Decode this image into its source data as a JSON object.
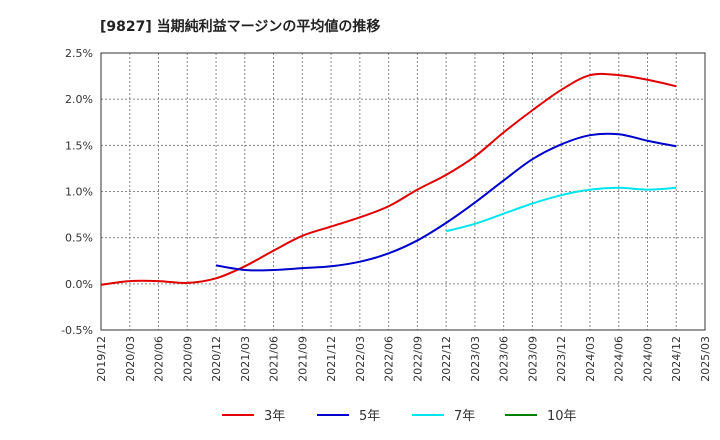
{
  "chart_data": {
    "type": "line",
    "title": "[9827]  当期純利益マージンの平均値の推移",
    "xlabel": "",
    "ylabel": "",
    "ylim": [
      -0.5,
      2.5
    ],
    "y_unit": "%",
    "grid": true,
    "legend_position": "bottom",
    "x_tick_labels": [
      "2019/12",
      "2020/03",
      "2020/06",
      "2020/09",
      "2020/12",
      "2021/03",
      "2021/06",
      "2021/09",
      "2021/12",
      "2022/03",
      "2022/06",
      "2022/09",
      "2022/12",
      "2023/03",
      "2023/06",
      "2023/09",
      "2023/12",
      "2024/03",
      "2024/06",
      "2024/09",
      "2024/12",
      "2025/03"
    ],
    "y_tick_labels": [
      "2.5%",
      "2.0%",
      "1.5%",
      "1.0%",
      "0.5%",
      "0.0%",
      "-0.5%"
    ],
    "y_ticks": [
      2.5,
      2.0,
      1.5,
      1.0,
      0.5,
      0.0,
      -0.5
    ],
    "series": [
      {
        "name": "3年",
        "color": "#e00000",
        "x": [
          "2019/12",
          "2020/03",
          "2020/06",
          "2020/09",
          "2020/12",
          "2021/03",
          "2021/06",
          "2021/09",
          "2021/12",
          "2022/03",
          "2022/06",
          "2022/09",
          "2022/12",
          "2023/03",
          "2023/06",
          "2023/09",
          "2023/12",
          "2024/03",
          "2024/06",
          "2024/09",
          "2024/12"
        ],
        "values": [
          -0.01,
          0.03,
          0.03,
          0.01,
          0.06,
          0.19,
          0.36,
          0.52,
          0.62,
          0.72,
          0.84,
          1.02,
          1.18,
          1.38,
          1.64,
          1.88,
          2.1,
          2.26,
          2.26,
          2.21,
          2.14
        ]
      },
      {
        "name": "5年",
        "color": "#0000cc",
        "x": [
          "2020/12",
          "2021/03",
          "2021/06",
          "2021/09",
          "2021/12",
          "2022/03",
          "2022/06",
          "2022/09",
          "2022/12",
          "2023/03",
          "2023/06",
          "2023/09",
          "2023/12",
          "2024/03",
          "2024/06",
          "2024/09",
          "2024/12"
        ],
        "values": [
          0.2,
          0.15,
          0.15,
          0.17,
          0.19,
          0.24,
          0.33,
          0.47,
          0.66,
          0.88,
          1.12,
          1.35,
          1.51,
          1.61,
          1.62,
          1.55,
          1.49
        ]
      },
      {
        "name": "7年",
        "color": "#00e5ee",
        "x": [
          "2022/12",
          "2023/03",
          "2023/06",
          "2023/09",
          "2023/12",
          "2024/03",
          "2024/06",
          "2024/09",
          "2024/12"
        ],
        "values": [
          0.57,
          0.65,
          0.76,
          0.87,
          0.96,
          1.02,
          1.04,
          1.02,
          1.04
        ]
      },
      {
        "name": "10年",
        "color": "#008000",
        "x": [],
        "values": []
      }
    ]
  }
}
